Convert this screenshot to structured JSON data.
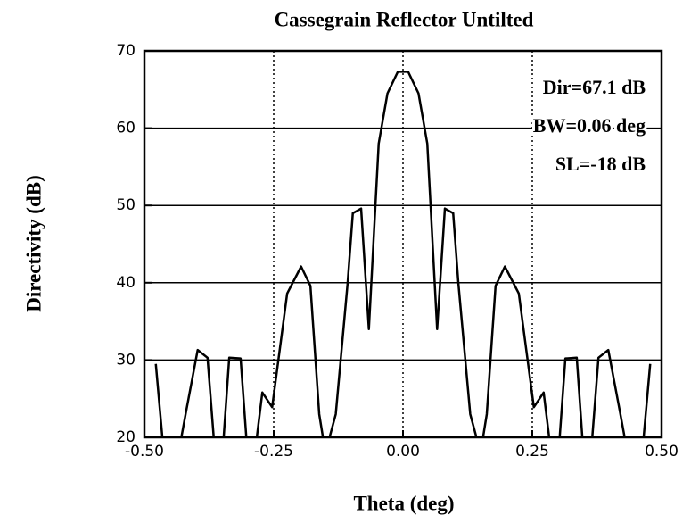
{
  "chart_data": {
    "type": "line",
    "title": "Cassegrain Reflector Untilted",
    "xlabel": "Theta (deg)",
    "ylabel": "Directivity (dB)",
    "annotations": [
      "Dir=67.1 dB",
      "BW=0.06 deg",
      "SL=-18 dB"
    ],
    "xlim": [
      -0.5,
      0.5
    ],
    "ylim": [
      20,
      70
    ],
    "xticks": [
      {
        "value": -0.5,
        "label": "-0.50"
      },
      {
        "value": -0.25,
        "label": "-0.25"
      },
      {
        "value": 0,
        "label": "0.00"
      },
      {
        "value": 0.25,
        "label": "0.25"
      },
      {
        "value": 0.5,
        "label": "0.50"
      }
    ],
    "yticks": [
      20,
      30,
      40,
      50,
      60,
      70
    ],
    "grid": true,
    "series": [
      {
        "name": "Directivity",
        "color": "#000000",
        "x": [
          -0.478,
          -0.464,
          -0.445,
          -0.419,
          -0.397,
          -0.378,
          -0.366,
          -0.352,
          -0.336,
          -0.314,
          -0.303,
          -0.29,
          -0.272,
          -0.253,
          -0.224,
          -0.197,
          -0.179,
          -0.162,
          -0.15,
          -0.13,
          -0.107,
          -0.097,
          -0.081,
          -0.066,
          -0.047,
          -0.03,
          -0.01,
          0.01,
          0.03,
          0.047,
          0.066,
          0.081,
          0.097,
          0.107,
          0.13,
          0.15,
          0.162,
          0.179,
          0.197,
          0.224,
          0.253,
          0.272,
          0.29,
          0.303,
          0.314,
          0.336,
          0.352,
          0.366,
          0.378,
          0.397,
          0.419,
          0.445,
          0.464,
          0.478
        ],
        "values": [
          29.5,
          19,
          14,
          23.5,
          31.3,
          30.3,
          20,
          15,
          30.3,
          30.2,
          20,
          16,
          25.8,
          23.9,
          38.6,
          42.1,
          39.6,
          23,
          18,
          23,
          40,
          49,
          49.6,
          34,
          58,
          64.5,
          67.3,
          67.3,
          64.5,
          58,
          34,
          49.6,
          49,
          40,
          23,
          18,
          23,
          39.6,
          42.1,
          38.6,
          23.9,
          25.8,
          16,
          20,
          30.2,
          30.3,
          15,
          20,
          30.3,
          31.3,
          23.5,
          14,
          19,
          29.5
        ]
      }
    ]
  }
}
